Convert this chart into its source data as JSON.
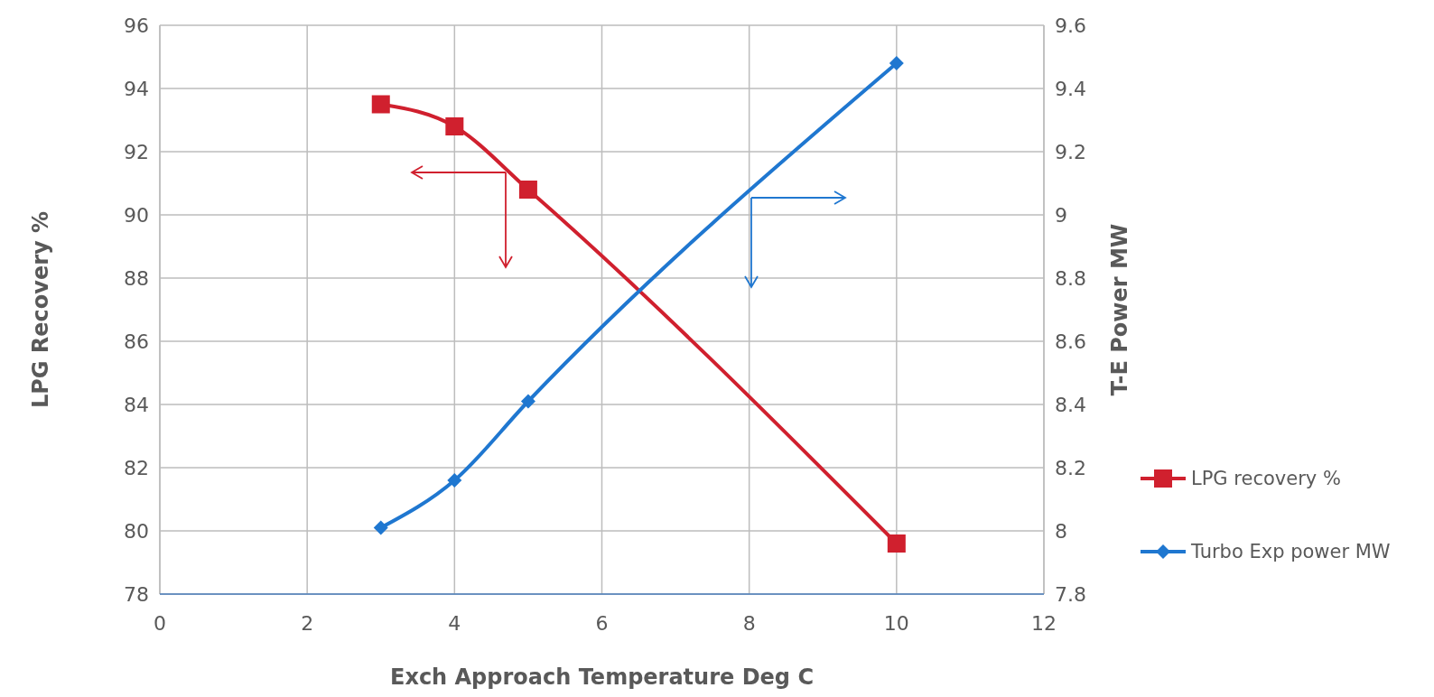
{
  "chart_data": {
    "type": "line",
    "xlabel": "Exch Approach Temperature Deg C",
    "ylabel": "LPG Recovery %",
    "y2label": "T-E Power MW",
    "xlim": [
      0,
      12
    ],
    "xticks": [
      0,
      2,
      4,
      6,
      8,
      10,
      12
    ],
    "ylim": [
      78,
      96
    ],
    "yticks": [
      78,
      80,
      82,
      84,
      86,
      88,
      90,
      92,
      94,
      96
    ],
    "y2lim": [
      7.8,
      9.6
    ],
    "y2ticks": [
      7.8,
      8,
      8.2,
      8.4,
      8.6,
      8.8,
      9,
      9.2,
      9.4,
      9.6
    ],
    "grid": true,
    "legend": "right",
    "series": [
      {
        "name": "LPG recovery %",
        "color": "#d0202e",
        "marker": "square",
        "x": [
          3,
          4,
          5,
          10
        ],
        "values": [
          93.5,
          92.8,
          90.8,
          79.6
        ]
      },
      {
        "name": "Turbo Exp power MW",
        "color": "#1f77d0",
        "marker": "diamond",
        "axis": "y2",
        "x": [
          3,
          4,
          5,
          10
        ],
        "values": [
          8.01,
          8.16,
          8.41,
          9.48
        ]
      }
    ]
  }
}
